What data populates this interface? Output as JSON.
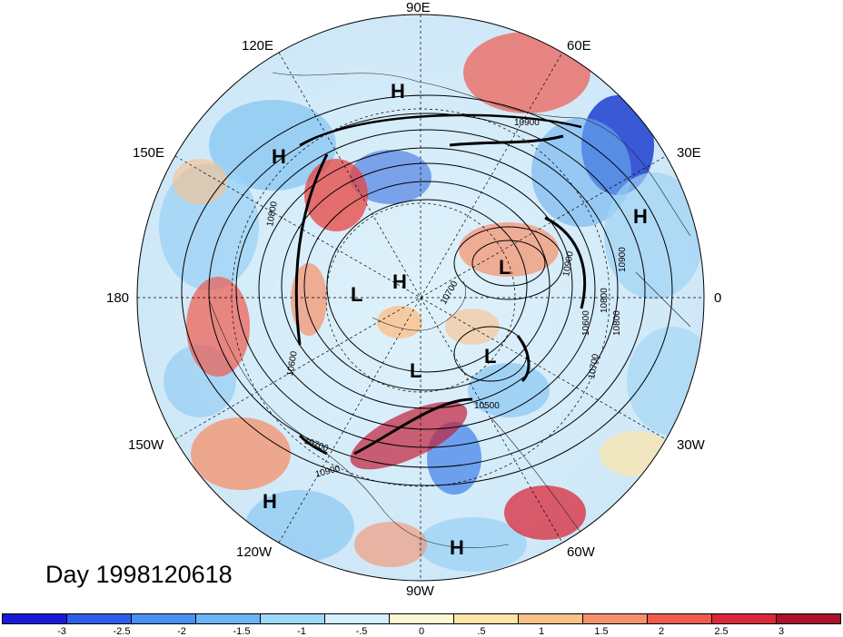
{
  "title": "Day 1998120618",
  "longitude_labels": {
    "lon_90e": "90E",
    "lon_120e": "120E",
    "lon_60e": "60E",
    "lon_150e": "150E",
    "lon_30e": "30E",
    "lon_180": "180",
    "lon_0": "0",
    "lon_150w": "150W",
    "lon_30w": "30W",
    "lon_120w": "120W",
    "lon_60w": "60W",
    "lon_90w": "90W"
  },
  "contour_labels": [
    "10900",
    "10800",
    "10700",
    "10600",
    "10500",
    "10900",
    "10800",
    "10700",
    "10900",
    "10600",
    "10700",
    "10800",
    "10900"
  ],
  "pressure_centers": [
    "H",
    "H",
    "H",
    "H",
    "H",
    "H",
    "L",
    "L",
    "L",
    "L"
  ],
  "colorbar": {
    "colors": [
      "#1a1ad6",
      "#2f5fe8",
      "#4a90f0",
      "#6cb6f5",
      "#9fd9fa",
      "#d4f1fc",
      "#fdf8d4",
      "#fde5a8",
      "#fbc089",
      "#f6906a",
      "#ef5a4f",
      "#d9283a",
      "#a8122a"
    ],
    "ticks": [
      "-3",
      "-2.5",
      "-2",
      "-1.5",
      "-1",
      "-.5",
      "0",
      ".5",
      "1",
      "1.5",
      "2",
      "2.5",
      "3"
    ]
  }
}
